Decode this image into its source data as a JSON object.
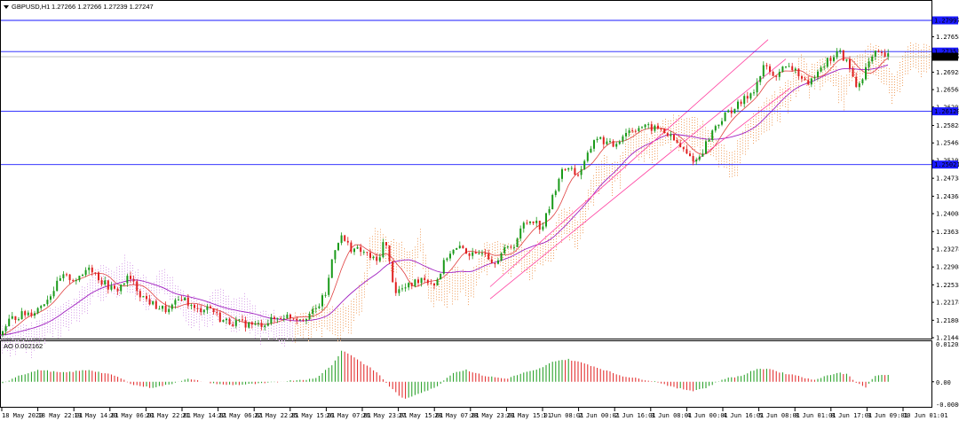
{
  "header": {
    "symbol": "GBPUSD,H1",
    "ohlc": "1.27266 1.27266 1.27239 1.27247"
  },
  "price_axis": {
    "min": 1.21448,
    "max": 1.28198,
    "ticks": [
      "1.27658",
      "1.26928",
      "1.26568",
      "1.26208",
      "1.25828",
      "1.25468",
      "1.25108",
      "1.24738",
      "1.24368",
      "1.24008",
      "1.23638",
      "1.23278",
      "1.22908",
      "1.22538",
      "1.22178",
      "1.21808",
      "1.21448"
    ]
  },
  "levels": [
    {
      "price": 1.27997,
      "label": "1.27997",
      "kind": "hline"
    },
    {
      "price": 1.27353,
      "label": "1.27353",
      "kind": "hline"
    },
    {
      "price": 1.27247,
      "label": "1.27247",
      "kind": "bid"
    },
    {
      "price": 1.2612,
      "label": "1.26120",
      "kind": "hline"
    },
    {
      "price": 1.25021,
      "label": "1.25021",
      "kind": "hline"
    }
  ],
  "hidden_tick": "1.26128",
  "hidden_tick2": "1.25068",
  "indicator": {
    "label": "AO 0.002162",
    "top_label": "0.012052",
    "zero_label": "0.00",
    "bottom_label": "-0.008065",
    "max": 0.012052,
    "min": -0.008065
  },
  "time_axis": [
    "18 May 2020",
    "18 May 22:01",
    "19 May 14:01",
    "20 May 06:01",
    "20 May 22:01",
    "21 May 14:01",
    "22 May 06:01",
    "22 May 22:01",
    "25 May 15:01",
    "26 May 07:01",
    "26 May 23:01",
    "27 May 15:01",
    "28 May 07:01",
    "28 May 23:01",
    "29 May 15:01",
    "1 Jun 08:01",
    "2 Jun 00:01",
    "2 Jun 16:01",
    "3 Jun 08:01",
    "4 Jun 00:01",
    "4 Jun 16:01",
    "5 Jun 08:01",
    "8 Jun 01:01",
    "8 Jun 17:01",
    "9 Jun 09:01",
    "10 Jun 01:01"
  ],
  "chart_data": {
    "type": "candlestick",
    "symbol": "GBPUSD",
    "timeframe": "H1",
    "price_path": [
      [
        0,
        1.215
      ],
      [
        10,
        1.218
      ],
      [
        20,
        1.219
      ],
      [
        40,
        1.22
      ],
      [
        55,
        1.223
      ],
      [
        70,
        1.227
      ],
      [
        90,
        1.2265
      ],
      [
        100,
        1.2295
      ],
      [
        115,
        1.226
      ],
      [
        130,
        1.224
      ],
      [
        145,
        1.227
      ],
      [
        160,
        1.223
      ],
      [
        175,
        1.221
      ],
      [
        190,
        1.22
      ],
      [
        205,
        1.223
      ],
      [
        220,
        1.22
      ],
      [
        235,
        1.221
      ],
      [
        250,
        1.218
      ],
      [
        270,
        1.2175
      ],
      [
        290,
        1.217
      ],
      [
        305,
        1.218
      ],
      [
        320,
        1.219
      ],
      [
        340,
        1.2185
      ],
      [
        355,
        1.22
      ],
      [
        368,
        1.224
      ],
      [
        375,
        1.232
      ],
      [
        383,
        1.2355
      ],
      [
        395,
        1.233
      ],
      [
        410,
        1.232
      ],
      [
        425,
        1.23
      ],
      [
        433,
        1.235
      ],
      [
        445,
        1.224
      ],
      [
        460,
        1.225
      ],
      [
        475,
        1.227
      ],
      [
        490,
        1.2255
      ],
      [
        505,
        1.232
      ],
      [
        520,
        1.233
      ],
      [
        535,
        1.231
      ],
      [
        545,
        1.233
      ],
      [
        555,
        1.23
      ],
      [
        565,
        1.232
      ],
      [
        580,
        1.234
      ],
      [
        590,
        1.238
      ],
      [
        600,
        1.239
      ],
      [
        610,
        1.237
      ],
      [
        620,
        1.242
      ],
      [
        630,
        1.248
      ],
      [
        640,
        1.25
      ],
      [
        650,
        1.248
      ],
      [
        660,
        1.251
      ],
      [
        670,
        1.256
      ],
      [
        690,
        1.254
      ],
      [
        705,
        1.257
      ],
      [
        720,
        1.258
      ],
      [
        745,
        1.2575
      ],
      [
        760,
        1.255
      ],
      [
        775,
        1.252
      ],
      [
        785,
        1.251
      ],
      [
        795,
        1.2545
      ],
      [
        805,
        1.258
      ],
      [
        820,
        1.261
      ],
      [
        835,
        1.263
      ],
      [
        850,
        1.266
      ],
      [
        862,
        1.271
      ],
      [
        870,
        1.268
      ],
      [
        880,
        1.27
      ],
      [
        895,
        1.27
      ],
      [
        910,
        1.266
      ],
      [
        920,
        1.27
      ],
      [
        935,
        1.272
      ],
      [
        945,
        1.2735
      ],
      [
        955,
        1.271
      ],
      [
        965,
        1.266
      ],
      [
        975,
        1.27
      ],
      [
        985,
        1.273
      ],
      [
        1000,
        1.2725
      ]
    ],
    "ao_path": [
      [
        0,
        -0.001
      ],
      [
        20,
        0.002
      ],
      [
        45,
        0.004
      ],
      [
        70,
        0.003
      ],
      [
        100,
        0.004
      ],
      [
        130,
        0.002
      ],
      [
        150,
        -0.001
      ],
      [
        170,
        -0.002
      ],
      [
        190,
        -0.001
      ],
      [
        210,
        0.001
      ],
      [
        230,
        0.0
      ],
      [
        250,
        -0.001
      ],
      [
        270,
        -0.001
      ],
      [
        300,
        -0.0005
      ],
      [
        330,
        0.0005
      ],
      [
        355,
        0.001
      ],
      [
        375,
        0.006
      ],
      [
        385,
        0.0105
      ],
      [
        395,
        0.009
      ],
      [
        410,
        0.006
      ],
      [
        425,
        0.003
      ],
      [
        440,
        -0.002
      ],
      [
        455,
        -0.006
      ],
      [
        470,
        -0.004
      ],
      [
        490,
        -0.002
      ],
      [
        510,
        0.003
      ],
      [
        525,
        0.004
      ],
      [
        545,
        0.002
      ],
      [
        570,
        0.001
      ],
      [
        590,
        0.003
      ],
      [
        605,
        0.004
      ],
      [
        625,
        0.007
      ],
      [
        640,
        0.0075
      ],
      [
        660,
        0.006
      ],
      [
        680,
        0.004
      ],
      [
        700,
        0.002
      ],
      [
        720,
        0.001
      ],
      [
        740,
        0.0
      ],
      [
        760,
        -0.002
      ],
      [
        780,
        -0.003
      ],
      [
        795,
        -0.002
      ],
      [
        815,
        0.001
      ],
      [
        835,
        0.002
      ],
      [
        850,
        0.004
      ],
      [
        865,
        0.0045
      ],
      [
        880,
        0.003
      ],
      [
        900,
        0.002
      ],
      [
        915,
        0.0005
      ],
      [
        930,
        0.002
      ],
      [
        945,
        0.003
      ],
      [
        955,
        0.0025
      ],
      [
        965,
        -0.0005
      ],
      [
        975,
        -0.002
      ],
      [
        985,
        0.002
      ],
      [
        1000,
        0.0022
      ]
    ]
  }
}
